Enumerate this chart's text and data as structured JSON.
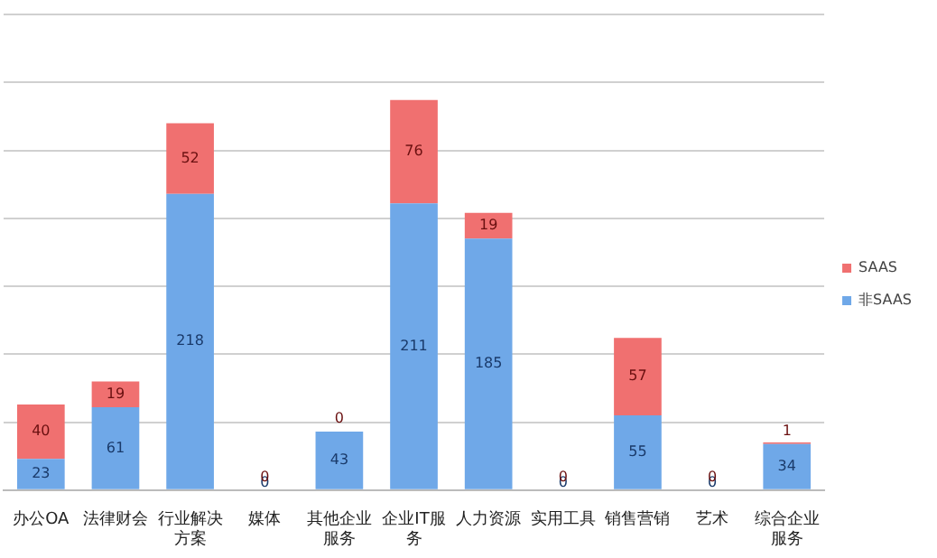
{
  "chart_data": {
    "type": "bar",
    "stacked": true,
    "categories": [
      "办公OA",
      "法律财会",
      "行业解决方案",
      "媒体",
      "其他企业服务",
      "企业IT服务",
      "人力资源",
      "实用工具",
      "销售营销",
      "艺术",
      "综合企业服务"
    ],
    "series": [
      {
        "name": "非SAAS",
        "color": "#6fa8e8",
        "values": [
          23,
          61,
          218,
          0,
          43,
          211,
          185,
          0,
          55,
          0,
          34
        ]
      },
      {
        "name": "SAAS",
        "color": "#f07070",
        "values": [
          40,
          19,
          52,
          0,
          0,
          76,
          19,
          0,
          57,
          0,
          1
        ]
      }
    ],
    "ylim": [
      0,
      350
    ],
    "yticks": [
      {
        "value": 0,
        "label": null
      },
      {
        "value": 50,
        "label": null
      },
      {
        "value": 100,
        "label": null
      },
      {
        "value": 150,
        "label": null
      },
      {
        "value": 200,
        "label": null
      },
      {
        "value": 250,
        "label": null
      },
      {
        "value": 300,
        "label": null
      },
      {
        "value": 350,
        "label": null
      }
    ],
    "tick_labels": "x",
    "grid": "y",
    "legend": "right",
    "data_labels": true
  }
}
